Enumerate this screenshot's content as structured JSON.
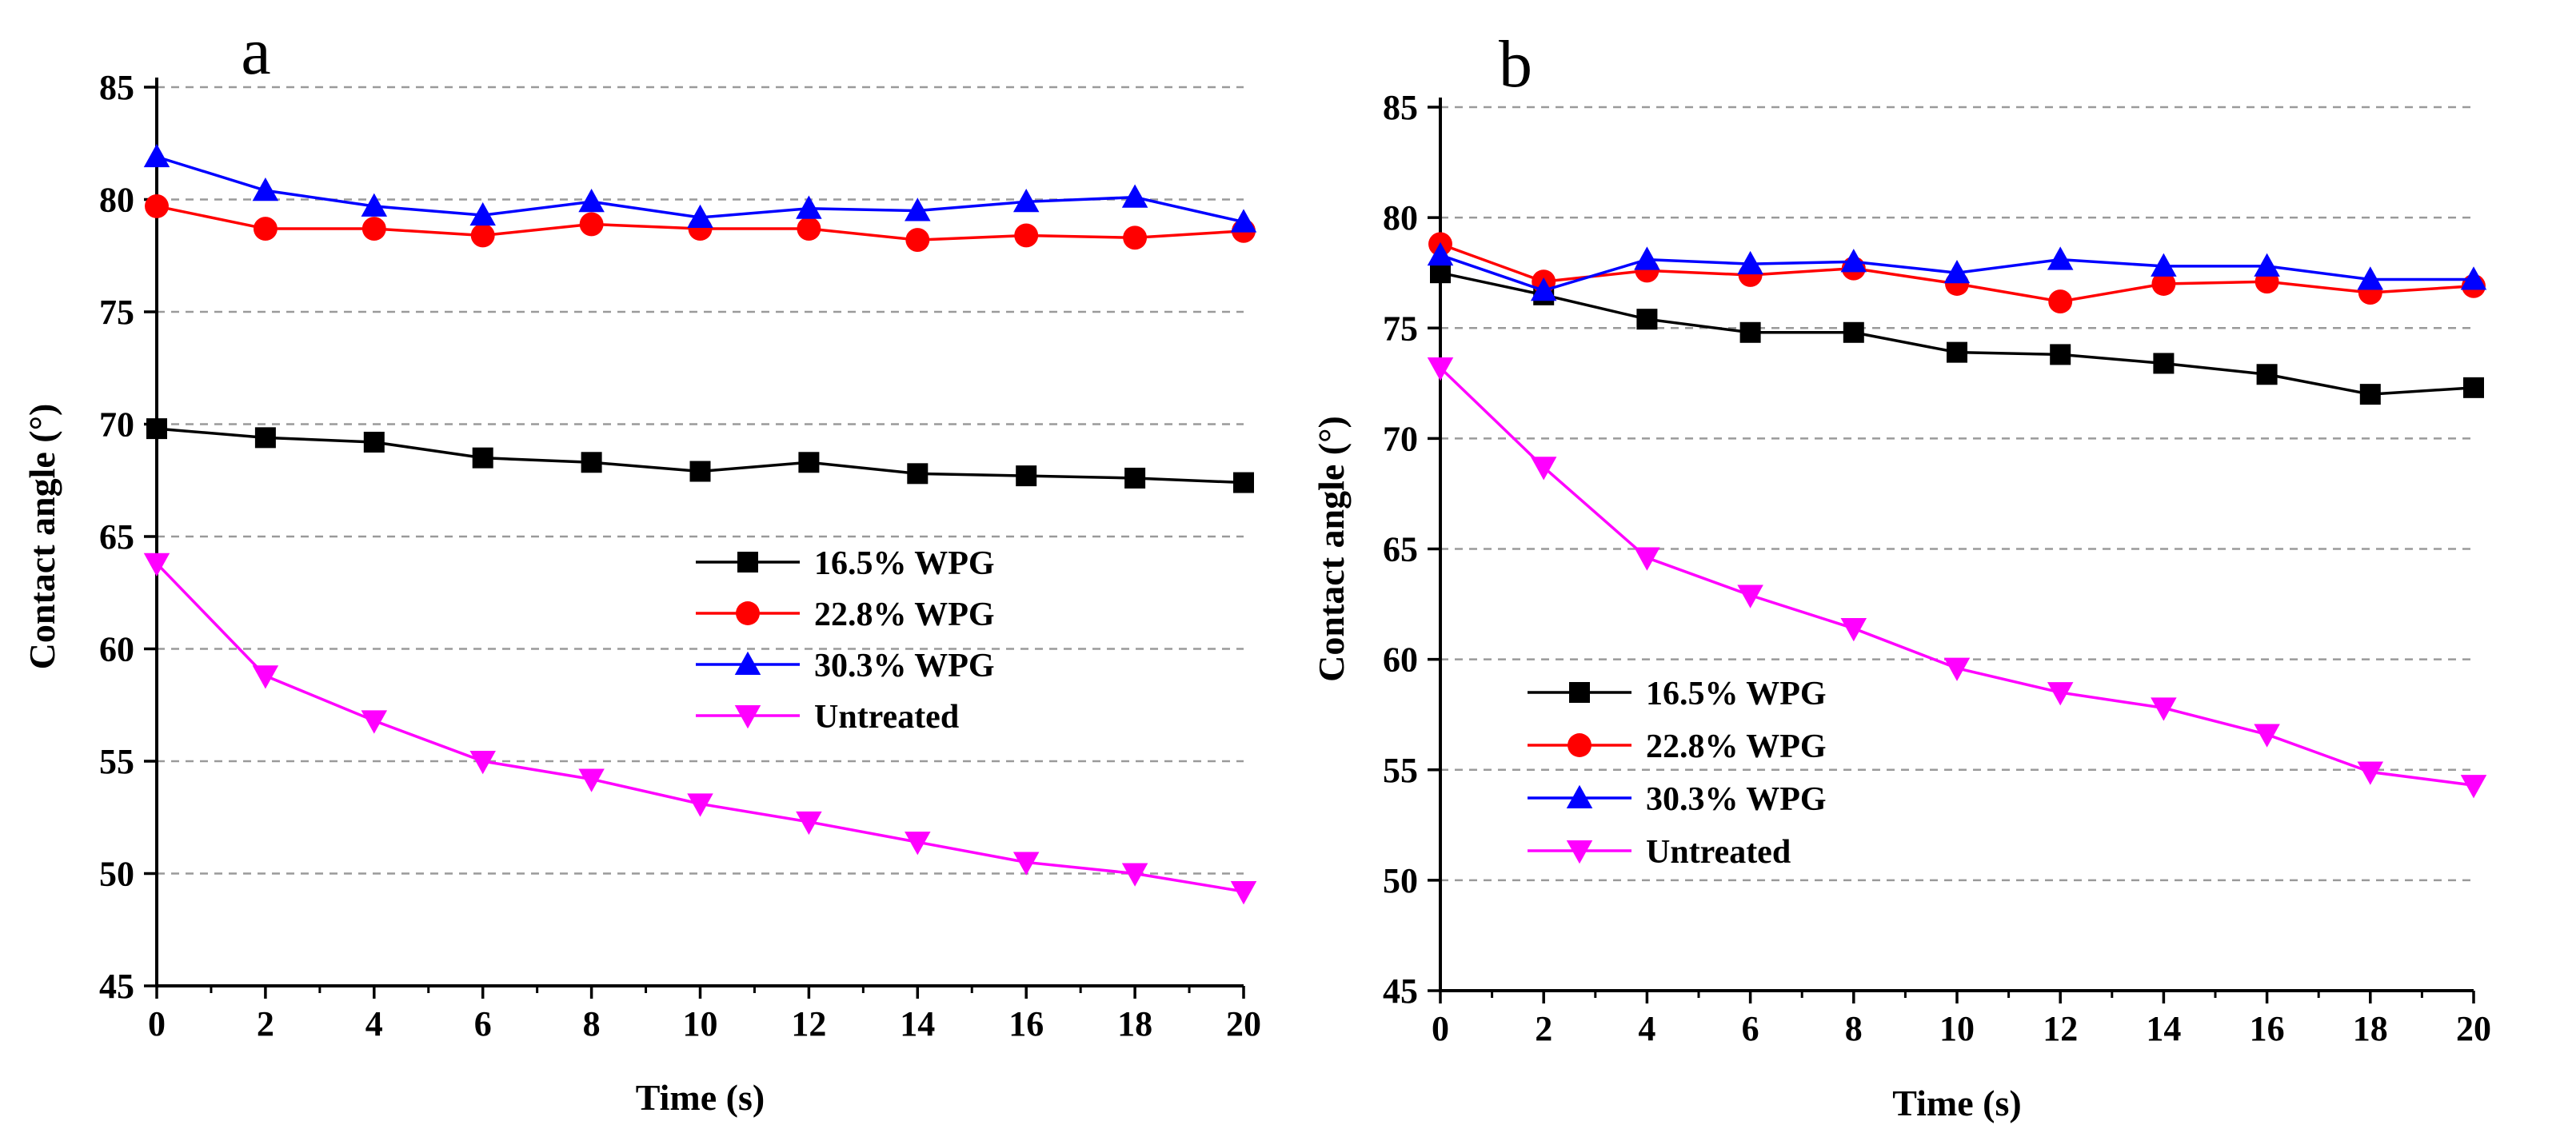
{
  "chart_data": [
    {
      "type": "line",
      "panel_label": "a",
      "xlabel": "Time (s)",
      "ylabel": "Contact angle (°)",
      "xlim": [
        0,
        20
      ],
      "ylim": [
        45,
        85
      ],
      "xticks": [
        0,
        2,
        4,
        6,
        8,
        10,
        12,
        14,
        16,
        18,
        20
      ],
      "yticks": [
        45,
        50,
        55,
        60,
        65,
        70,
        75,
        80,
        85
      ],
      "grid": "horizontal dashed",
      "legend_position": "center-right",
      "x": [
        0,
        2,
        4,
        6,
        8,
        10,
        12,
        14,
        16,
        18,
        20
      ],
      "series": [
        {
          "name": "16.5% WPG",
          "color": "#000000",
          "marker": "square",
          "values": [
            69.8,
            69.4,
            69.2,
            68.5,
            68.3,
            67.9,
            68.3,
            67.8,
            67.7,
            67.6,
            67.4
          ]
        },
        {
          "name": "22.8% WPG",
          "color": "#ff0000",
          "marker": "circle",
          "values": [
            79.7,
            78.7,
            78.7,
            78.4,
            78.9,
            78.7,
            78.7,
            78.2,
            78.4,
            78.3,
            78.6
          ]
        },
        {
          "name": "30.3% WPG",
          "color": "#0000ff",
          "marker": "triangle-up",
          "values": [
            81.9,
            80.4,
            79.7,
            79.3,
            79.9,
            79.2,
            79.6,
            79.5,
            79.9,
            80.1,
            79.0
          ]
        },
        {
          "name": "Untreated",
          "color": "#ff00ff",
          "marker": "triangle-down",
          "values": [
            63.8,
            58.8,
            56.8,
            55.0,
            54.2,
            53.1,
            52.3,
            51.4,
            50.5,
            50.0,
            49.2
          ]
        }
      ]
    },
    {
      "type": "line",
      "panel_label": "b",
      "xlabel": "Time (s)",
      "ylabel": "Contact angle (°)",
      "xlim": [
        0,
        20
      ],
      "ylim": [
        45,
        85
      ],
      "xticks": [
        0,
        2,
        4,
        6,
        8,
        10,
        12,
        14,
        16,
        18,
        20
      ],
      "yticks": [
        45,
        50,
        55,
        60,
        65,
        70,
        75,
        80,
        85
      ],
      "grid": "horizontal dashed",
      "legend_position": "center-left",
      "x": [
        0,
        2,
        4,
        6,
        8,
        10,
        12,
        14,
        16,
        18,
        20
      ],
      "series": [
        {
          "name": "16.5% WPG",
          "color": "#000000",
          "marker": "square",
          "values": [
            77.5,
            76.5,
            75.4,
            74.8,
            74.8,
            73.9,
            73.8,
            73.4,
            72.9,
            72.0,
            72.3
          ]
        },
        {
          "name": "22.8% WPG",
          "color": "#ff0000",
          "marker": "circle",
          "values": [
            78.8,
            77.1,
            77.6,
            77.4,
            77.7,
            77.0,
            76.2,
            77.0,
            77.1,
            76.6,
            76.9
          ]
        },
        {
          "name": "30.3% WPG",
          "color": "#0000ff",
          "marker": "triangle-up",
          "values": [
            78.3,
            76.7,
            78.1,
            77.9,
            78.0,
            77.5,
            78.1,
            77.8,
            77.8,
            77.2,
            77.2
          ]
        },
        {
          "name": "Untreated",
          "color": "#ff00ff",
          "marker": "triangle-down",
          "values": [
            73.2,
            68.7,
            64.6,
            62.9,
            61.4,
            59.6,
            58.5,
            57.8,
            56.6,
            54.9,
            54.3
          ]
        }
      ]
    }
  ]
}
